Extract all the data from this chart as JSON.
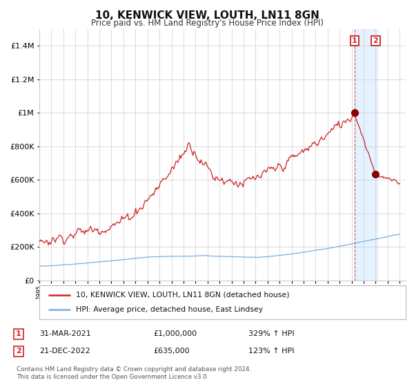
{
  "title": "10, KENWICK VIEW, LOUTH, LN11 8GN",
  "subtitle": "Price paid vs. HM Land Registry's House Price Index (HPI)",
  "hpi_label": "HPI: Average price, detached house, East Lindsey",
  "price_label": "10, KENWICK VIEW, LOUTH, LN11 8GN (detached house)",
  "footer1": "Contains HM Land Registry data © Crown copyright and database right 2024.",
  "footer2": "This data is licensed under the Open Government Licence v3.0.",
  "sale1_date": "31-MAR-2021",
  "sale1_price": 1000000,
  "sale1_hpi_text": "329% ↑ HPI",
  "sale2_date": "21-DEC-2022",
  "sale2_price": 635000,
  "sale2_hpi_text": "123% ↑ HPI",
  "ylim": [
    0,
    1500000
  ],
  "yticks": [
    0,
    200000,
    400000,
    600000,
    800000,
    1000000,
    1200000,
    1400000
  ],
  "ytick_labels": [
    "£0",
    "£200K",
    "£400K",
    "£600K",
    "£800K",
    "£1M",
    "£1.2M",
    "£1.4M"
  ],
  "hpi_color": "#7aaddb",
  "price_color": "#cc2222",
  "marker_color": "#880000",
  "vline_color": "#cc3333",
  "shade_color": "#ddeeff",
  "label_border_color": "#cc2222",
  "grid_color": "#cccccc",
  "bg_color": "#ffffff",
  "sale1_year": 2021.25,
  "sale2_year": 2023.0,
  "xlim_start": 1995,
  "xlim_end": 2025.5
}
